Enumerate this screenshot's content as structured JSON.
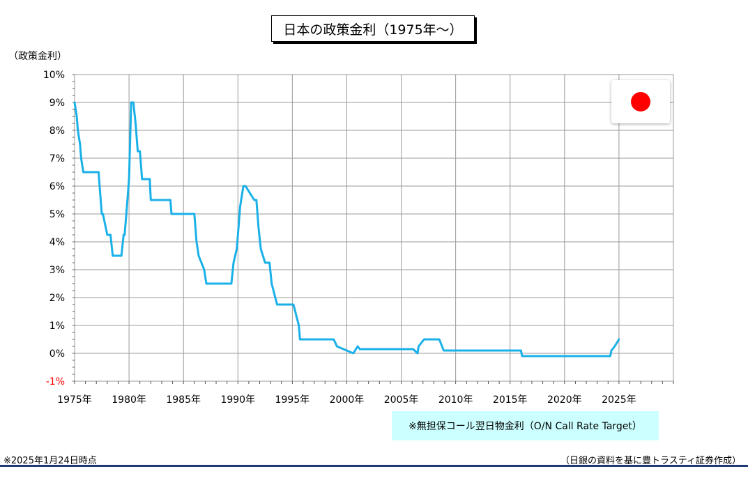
{
  "title": "日本の政策金利（1975年～）",
  "ylabel": "（政策金利）",
  "legend_note": "※無担保コール翌日物金利（O/N Call Rate Target）",
  "footnote_left": "※2025年1月24日時点",
  "footnote_right": "（日銀の資料を基に豊トラスティ証券作成）",
  "colors": {
    "line": "#1ab0e8",
    "grid": "#999999",
    "negative_tick": "#ff0000"
  },
  "icons": {
    "flag": "japan-flag-icon"
  },
  "chart_data": {
    "type": "line",
    "title": "日本の政策金利（1975年～）",
    "ylabel": "（政策金利）",
    "xlim": [
      1975,
      2030
    ],
    "ylim": [
      -1,
      10
    ],
    "x_ticks": [
      1975,
      1980,
      1985,
      1990,
      1995,
      2000,
      2005,
      2010,
      2015,
      2020,
      2025
    ],
    "x_tick_labels": [
      "1975年",
      "1980年",
      "1985年",
      "1990年",
      "1995年",
      "2000年",
      "2005年",
      "2010年",
      "2015年",
      "2020年",
      "2025年"
    ],
    "y_ticks": [
      -1,
      0,
      1,
      2,
      3,
      4,
      5,
      6,
      7,
      8,
      9,
      10
    ],
    "y_tick_labels": [
      "-1%",
      "0%",
      "1%",
      "2%",
      "3%",
      "4%",
      "5%",
      "6%",
      "7%",
      "8%",
      "9%",
      "10%"
    ],
    "grid": true,
    "series": [
      {
        "x": [
          1975.0,
          1975.2,
          1975.3,
          1975.5,
          1975.6,
          1975.8,
          1977.2,
          1977.3,
          1977.5,
          1977.6,
          1978.0,
          1978.3,
          1978.5,
          1979.3,
          1979.5,
          1979.6,
          1979.8,
          1980.0,
          1980.2,
          1980.4,
          1980.6,
          1980.8,
          1981.0,
          1981.2,
          1981.4,
          1981.6,
          1981.9,
          1982.0,
          1983.8,
          1983.9,
          1986.0,
          1986.1,
          1986.2,
          1986.4,
          1986.9,
          1987.1,
          1987.3,
          1989.4,
          1989.6,
          1989.9,
          1990.0,
          1990.2,
          1990.5,
          1990.7,
          1991.5,
          1991.7,
          1991.9,
          1992.1,
          1992.5,
          1992.9,
          1993.1,
          1993.6,
          1995.1,
          1995.6,
          1995.7,
          1998.8,
          1999.1,
          2000.6,
          2001.0,
          2001.2,
          2006.1,
          2006.5,
          2006.6,
          2007.1,
          2008.5,
          2008.9,
          2016.0,
          2016.1,
          2024.2,
          2024.3,
          2024.6,
          2025.0
        ],
        "y": [
          9.0,
          8.5,
          8.0,
          7.5,
          7.0,
          6.5,
          6.5,
          6.0,
          5.0,
          5.0,
          4.25,
          4.25,
          3.5,
          3.5,
          4.25,
          4.25,
          5.25,
          6.25,
          9.0,
          9.0,
          8.25,
          7.25,
          7.25,
          6.25,
          6.25,
          6.25,
          6.25,
          5.5,
          5.5,
          5.0,
          5.0,
          4.5,
          4.0,
          3.5,
          3.0,
          2.5,
          2.5,
          2.5,
          3.25,
          3.75,
          4.25,
          5.25,
          6.0,
          6.0,
          5.5,
          5.5,
          4.5,
          3.75,
          3.25,
          3.25,
          2.5,
          1.75,
          1.75,
          1.0,
          0.5,
          0.5,
          0.25,
          0.0,
          0.25,
          0.15,
          0.15,
          0.0,
          0.25,
          0.5,
          0.5,
          0.1,
          0.1,
          -0.1,
          -0.1,
          0.1,
          0.25,
          0.5
        ]
      }
    ]
  }
}
